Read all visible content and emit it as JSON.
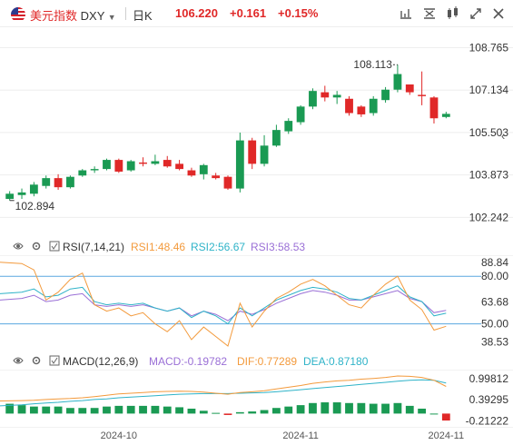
{
  "header": {
    "name_cn": "美元指数",
    "symbol": "DXY",
    "period": "日K",
    "price": "106.220",
    "change": "+0.161",
    "change_pct": "+0.15%",
    "up_color": "#e02828",
    "down_color": "#1a9a53",
    "tool_icons": [
      "crosshair-icon",
      "compare-icon",
      "indicator-icon",
      "draw-icon",
      "fullscreen-icon",
      "close-icon"
    ]
  },
  "main_chart": {
    "y_ticks": [
      "108.765",
      "107.134",
      "105.503",
      "103.873",
      "102.242"
    ],
    "y_range": [
      101.8,
      109.2
    ],
    "high_label": "108.113",
    "low_label": "102.894",
    "candles": [
      {
        "o": 102.95,
        "h": 103.25,
        "l": 102.89,
        "c": 103.15
      },
      {
        "o": 103.1,
        "h": 103.35,
        "l": 102.95,
        "c": 103.2
      },
      {
        "o": 103.15,
        "h": 103.6,
        "l": 103.05,
        "c": 103.5
      },
      {
        "o": 103.45,
        "h": 103.85,
        "l": 103.35,
        "c": 103.75
      },
      {
        "o": 103.75,
        "h": 103.9,
        "l": 103.3,
        "c": 103.4
      },
      {
        "o": 103.4,
        "h": 103.85,
        "l": 103.35,
        "c": 103.8
      },
      {
        "o": 103.85,
        "h": 104.1,
        "l": 103.8,
        "c": 104.05
      },
      {
        "o": 104.05,
        "h": 104.2,
        "l": 103.95,
        "c": 104.1
      },
      {
        "o": 104.1,
        "h": 104.5,
        "l": 104.05,
        "c": 104.45
      },
      {
        "o": 104.45,
        "h": 104.5,
        "l": 103.95,
        "c": 104.0
      },
      {
        "o": 104.05,
        "h": 104.45,
        "l": 104.0,
        "c": 104.4
      },
      {
        "o": 104.35,
        "h": 104.55,
        "l": 104.2,
        "c": 104.3
      },
      {
        "o": 104.3,
        "h": 104.65,
        "l": 104.25,
        "c": 104.4
      },
      {
        "o": 104.45,
        "h": 104.6,
        "l": 104.15,
        "c": 104.2
      },
      {
        "o": 104.3,
        "h": 104.45,
        "l": 104.05,
        "c": 104.1
      },
      {
        "o": 104.05,
        "h": 104.15,
        "l": 103.8,
        "c": 103.85
      },
      {
        "o": 103.9,
        "h": 104.3,
        "l": 103.7,
        "c": 104.25
      },
      {
        "o": 103.85,
        "h": 103.95,
        "l": 103.7,
        "c": 103.75
      },
      {
        "o": 103.8,
        "h": 103.85,
        "l": 103.3,
        "c": 103.35
      },
      {
        "o": 103.35,
        "h": 105.5,
        "l": 103.2,
        "c": 105.2
      },
      {
        "o": 105.2,
        "h": 105.3,
        "l": 104.1,
        "c": 104.3
      },
      {
        "o": 104.3,
        "h": 105.4,
        "l": 104.2,
        "c": 105.0
      },
      {
        "o": 105.0,
        "h": 105.8,
        "l": 104.95,
        "c": 105.6
      },
      {
        "o": 105.55,
        "h": 106.05,
        "l": 105.45,
        "c": 105.95
      },
      {
        "o": 105.9,
        "h": 106.55,
        "l": 105.8,
        "c": 106.5
      },
      {
        "o": 106.5,
        "h": 107.2,
        "l": 106.4,
        "c": 107.1
      },
      {
        "o": 107.05,
        "h": 107.3,
        "l": 106.7,
        "c": 106.85
      },
      {
        "o": 106.85,
        "h": 107.1,
        "l": 106.6,
        "c": 106.95
      },
      {
        "o": 106.8,
        "h": 106.9,
        "l": 106.15,
        "c": 106.25
      },
      {
        "o": 106.5,
        "h": 106.55,
        "l": 106.1,
        "c": 106.2
      },
      {
        "o": 106.25,
        "h": 106.9,
        "l": 106.15,
        "c": 106.8
      },
      {
        "o": 106.75,
        "h": 107.25,
        "l": 106.65,
        "c": 107.15
      },
      {
        "o": 107.15,
        "h": 108.11,
        "l": 107.05,
        "c": 107.75
      },
      {
        "o": 107.35,
        "h": 107.35,
        "l": 106.95,
        "c": 107.05
      },
      {
        "o": 106.95,
        "h": 107.85,
        "l": 106.55,
        "c": 106.9
      },
      {
        "o": 106.85,
        "h": 106.9,
        "l": 105.85,
        "c": 106.05
      },
      {
        "o": 106.1,
        "h": 106.3,
        "l": 106.05,
        "c": 106.22
      }
    ]
  },
  "rsi": {
    "title": "RSI(7,14,21)",
    "rsi1_label": "RSI1:48.46",
    "rsi2_label": "RSI2:56.67",
    "rsi3_label": "RSI3:58.53",
    "colors": {
      "rsi1": "#f39a3c",
      "rsi2": "#2fb3c8",
      "rsi3": "#9a6fd6",
      "level": "#5aa7e0"
    },
    "y_ticks": [
      "88.84",
      "80.00",
      "63.68",
      "50.00",
      "38.53"
    ],
    "y_range": [
      36,
      91
    ],
    "levels": [
      80,
      50
    ],
    "rsi1": [
      88.8,
      88,
      84,
      65,
      70,
      78,
      82,
      62,
      58,
      60,
      55,
      57,
      50,
      45,
      52,
      40,
      48,
      42,
      36,
      63,
      48,
      58,
      66,
      70,
      75,
      78,
      74,
      68,
      62,
      60,
      68,
      75,
      80,
      65,
      59,
      46,
      48.46
    ],
    "rsi2": [
      69,
      70,
      72,
      67,
      68,
      72,
      73,
      64,
      62,
      63,
      62,
      63,
      60,
      58,
      60,
      54,
      58,
      55,
      50,
      60,
      55,
      60,
      65,
      68,
      71,
      73,
      72,
      70,
      66,
      65,
      68,
      71,
      74,
      67,
      64,
      55,
      56.67
    ],
    "rsi3": [
      65,
      66,
      68,
      64,
      65,
      68,
      69,
      62,
      61,
      62,
      61,
      62,
      60,
      58,
      60,
      55,
      58,
      56,
      52,
      58,
      56,
      59,
      63,
      66,
      69,
      71,
      70,
      68,
      65,
      65,
      67,
      69,
      71,
      66,
      64,
      57,
      58.53
    ]
  },
  "macd": {
    "title": "MACD(12,26,9)",
    "macd_label": "MACD:-0.19782",
    "dif_label": "DIF:0.77289",
    "dea_label": "DEA:0.87180",
    "colors": {
      "dif": "#f39a3c",
      "dea": "#2fb3c8"
    },
    "y_ticks": [
      "0.99812",
      "0.39295",
      "-0.21222"
    ],
    "y_range": [
      -0.3,
      1.2
    ],
    "dif": [
      0.36,
      0.37,
      0.38,
      0.4,
      0.42,
      0.43,
      0.45,
      0.48,
      0.52,
      0.56,
      0.58,
      0.6,
      0.62,
      0.63,
      0.64,
      0.63,
      0.61,
      0.58,
      0.55,
      0.6,
      0.62,
      0.65,
      0.7,
      0.75,
      0.8,
      0.86,
      0.9,
      0.93,
      0.95,
      0.98,
      1.0,
      1.03,
      1.07,
      1.06,
      1.03,
      0.95,
      0.77289
    ],
    "dea": [
      0.22,
      0.25,
      0.28,
      0.3,
      0.32,
      0.35,
      0.37,
      0.4,
      0.42,
      0.45,
      0.47,
      0.49,
      0.51,
      0.53,
      0.55,
      0.56,
      0.57,
      0.57,
      0.57,
      0.58,
      0.59,
      0.6,
      0.62,
      0.65,
      0.68,
      0.71,
      0.74,
      0.77,
      0.8,
      0.83,
      0.86,
      0.89,
      0.92,
      0.95,
      0.96,
      0.95,
      0.8718
    ],
    "hist": [
      0.28,
      0.24,
      0.2,
      0.2,
      0.2,
      0.16,
      0.16,
      0.16,
      0.2,
      0.22,
      0.22,
      0.22,
      0.22,
      0.2,
      0.18,
      0.14,
      0.08,
      0.02,
      -0.04,
      0.04,
      0.06,
      0.1,
      0.16,
      0.2,
      0.24,
      0.3,
      0.32,
      0.32,
      0.3,
      0.3,
      0.28,
      0.28,
      0.3,
      0.22,
      0.14,
      0.0,
      -0.19782
    ]
  },
  "x_axis": {
    "labels": [
      "2024-10",
      "2024-11",
      "2024-11"
    ],
    "label_candle_index": [
      9,
      24,
      36
    ]
  }
}
